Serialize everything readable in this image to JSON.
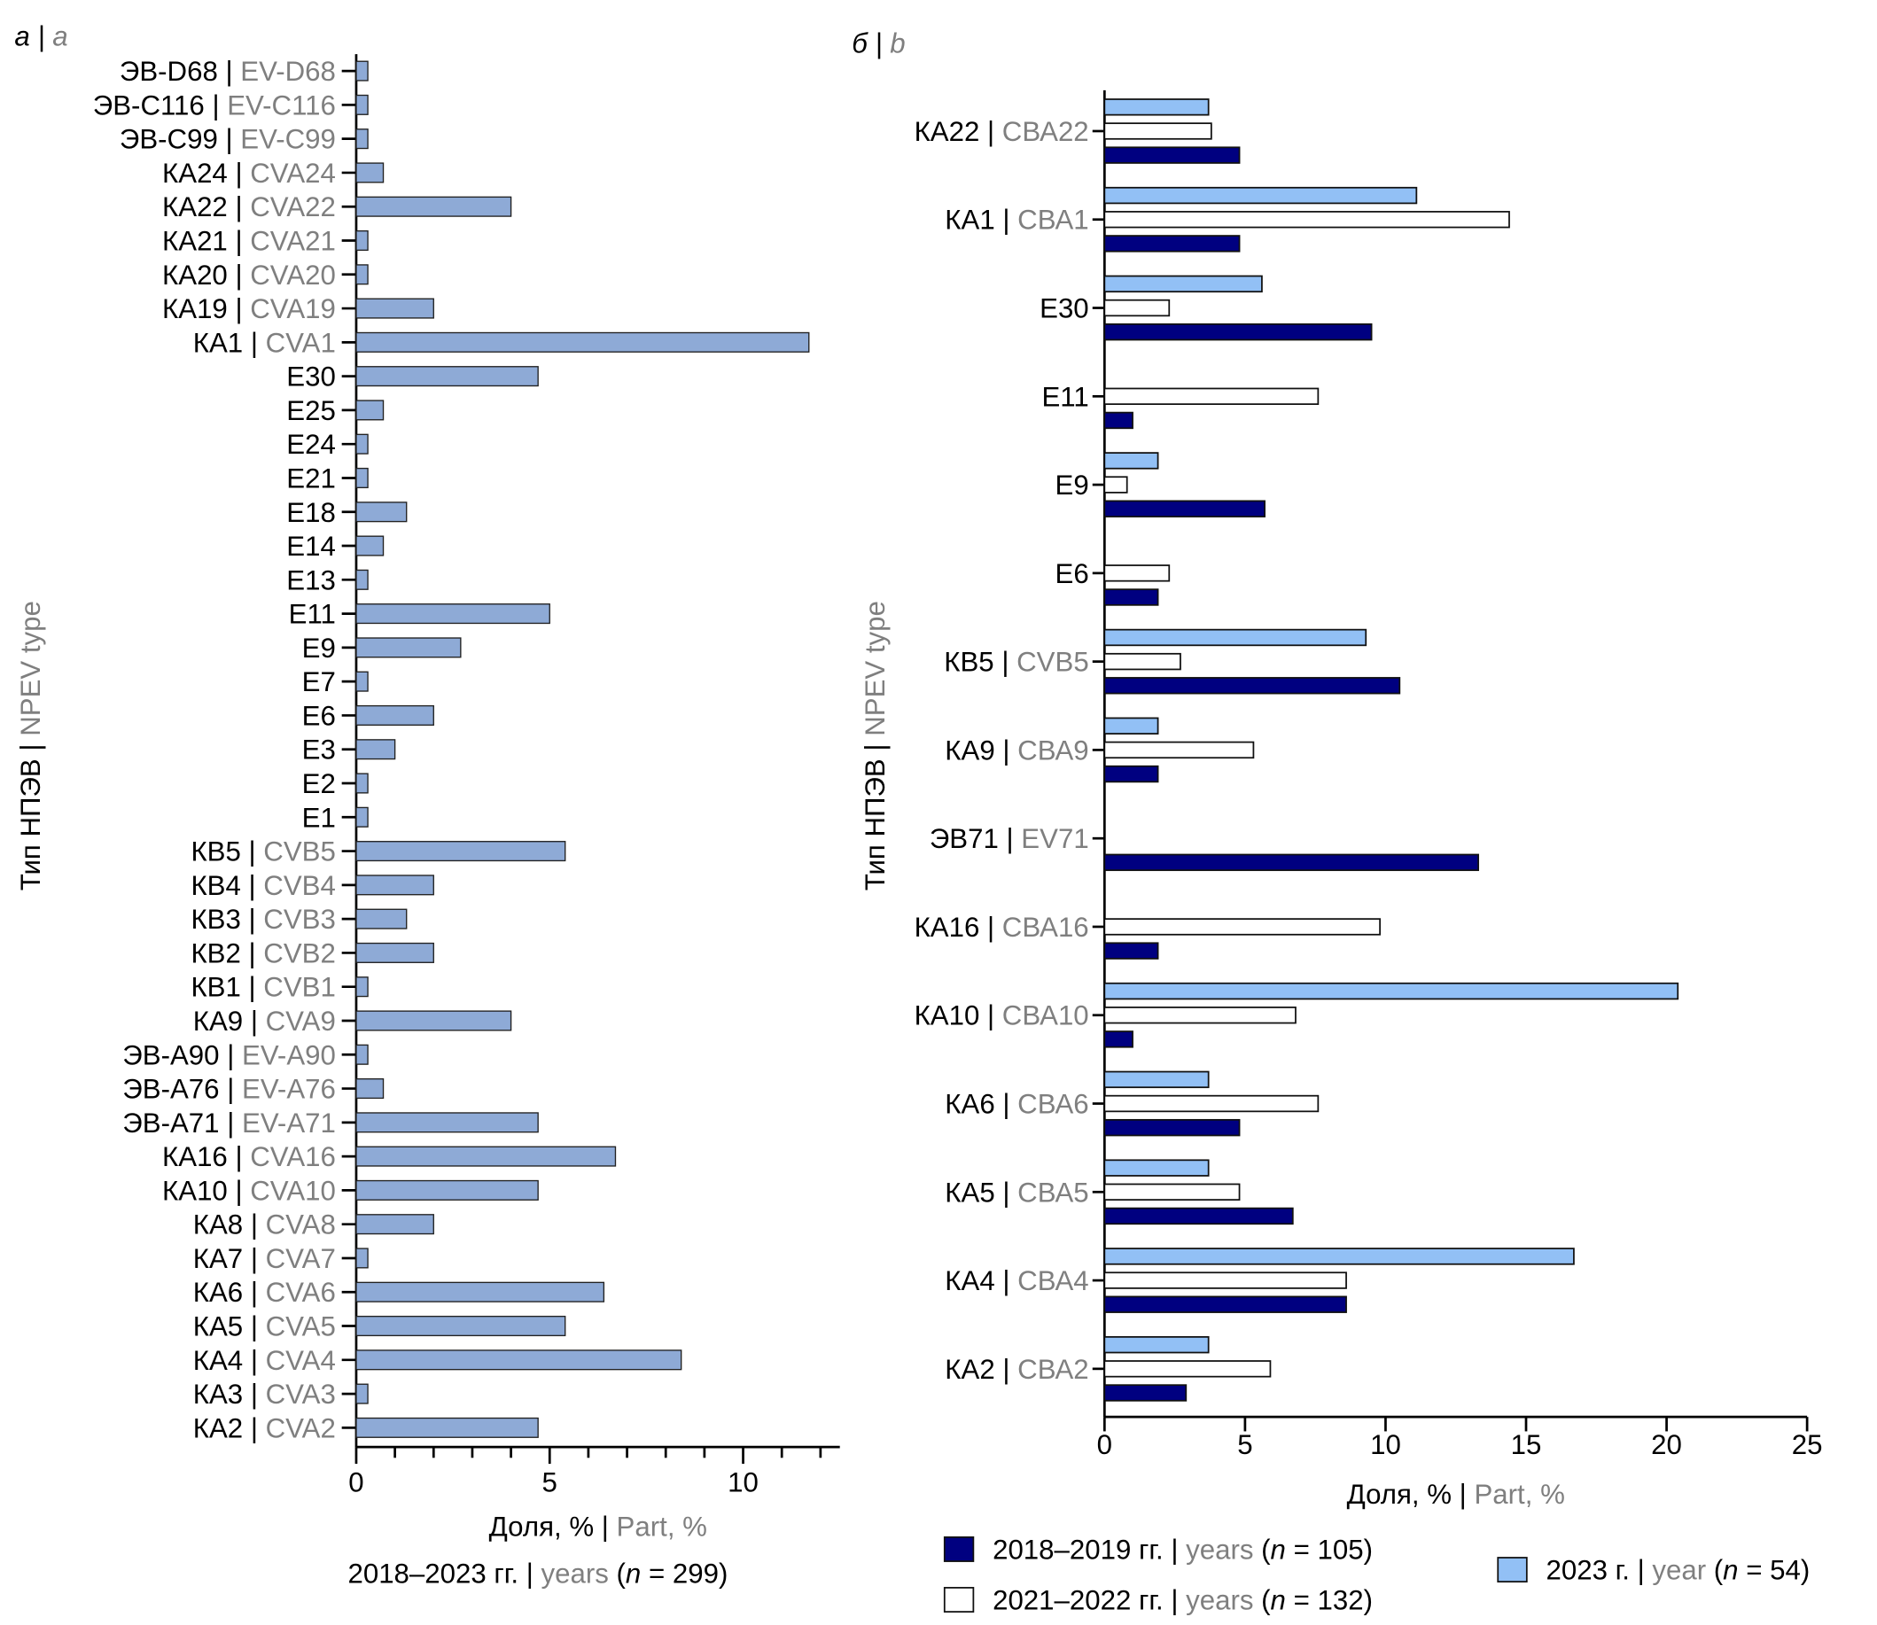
{
  "panels": {
    "a": {
      "ru": "а",
      "en": "a"
    },
    "b": {
      "ru": "б",
      "en": "b"
    }
  },
  "colors": {
    "panel_a_bar": "#8eaad6",
    "series_2018_2019": "#000080",
    "series_2021_2022": "#ffffff",
    "series_2023": "#92c0f5",
    "english_text": "#7f7f7f"
  },
  "chart_data": [
    {
      "type": "bar",
      "orientation": "horizontal",
      "panel": "a",
      "ylabel": {
        "ru": "Тип НПЭВ",
        "en": "NPEV type"
      },
      "xlabel": {
        "ru": "Доля, %",
        "en": "Part, %"
      },
      "subtitle": {
        "ru": "2018–2023 гг.",
        "en": "years",
        "n_symbol": "n",
        "n": "299"
      },
      "xlim": [
        0,
        12.5
      ],
      "xticks": [
        0,
        5,
        10
      ],
      "grid": false,
      "categories": [
        {
          "ru": "ЭВ-D68",
          "en": "EV-D68"
        },
        {
          "ru": "ЭВ-C116",
          "en": "EV-C116"
        },
        {
          "ru": "ЭВ-C99",
          "en": "EV-C99"
        },
        {
          "ru": "КА24",
          "en": "CVA24"
        },
        {
          "ru": "КА22",
          "en": "CVA22"
        },
        {
          "ru": "КА21",
          "en": "CVA21"
        },
        {
          "ru": "КА20",
          "en": "CVA20"
        },
        {
          "ru": "КА19",
          "en": "CVA19"
        },
        {
          "ru": "КА1",
          "en": "CVA1"
        },
        {
          "ru": "E30"
        },
        {
          "ru": "E25"
        },
        {
          "ru": "E24"
        },
        {
          "ru": "E21"
        },
        {
          "ru": "E18"
        },
        {
          "ru": "E14"
        },
        {
          "ru": "E13"
        },
        {
          "ru": "E11"
        },
        {
          "ru": "E9"
        },
        {
          "ru": "E7"
        },
        {
          "ru": "E6"
        },
        {
          "ru": "E3"
        },
        {
          "ru": "E2"
        },
        {
          "ru": "E1"
        },
        {
          "ru": "КВ5",
          "en": "CVB5"
        },
        {
          "ru": "КВ4",
          "en": "CVB4"
        },
        {
          "ru": "КВ3",
          "en": "CVB3"
        },
        {
          "ru": "КВ2",
          "en": "CVB2"
        },
        {
          "ru": "КВ1",
          "en": "CVB1"
        },
        {
          "ru": "КА9",
          "en": "CVA9"
        },
        {
          "ru": "ЭВ-А90",
          "en": "EV-A90"
        },
        {
          "ru": "ЭВ-А76",
          "en": "EV-A76"
        },
        {
          "ru": "ЭВ-А71",
          "en": "EV-A71"
        },
        {
          "ru": "КА16",
          "en": "CVA16"
        },
        {
          "ru": "КА10",
          "en": "CVA10"
        },
        {
          "ru": "КА8",
          "en": "CVA8"
        },
        {
          "ru": "КА7",
          "en": "CVA7"
        },
        {
          "ru": "КА6",
          "en": "CVA6"
        },
        {
          "ru": "КА5",
          "en": "CVA5"
        },
        {
          "ru": "КА4",
          "en": "CVA4"
        },
        {
          "ru": "КА3",
          "en": "CVA3"
        },
        {
          "ru": "КА2",
          "en": "CVA2"
        }
      ],
      "values": [
        0.3,
        0.3,
        0.3,
        0.7,
        4.0,
        0.3,
        0.3,
        2.0,
        11.7,
        4.7,
        0.7,
        0.3,
        0.3,
        1.3,
        0.7,
        0.3,
        5.0,
        2.7,
        0.3,
        2.0,
        1.0,
        0.3,
        0.3,
        5.4,
        2.0,
        1.3,
        2.0,
        0.3,
        4.0,
        0.3,
        0.7,
        4.7,
        6.7,
        4.7,
        2.0,
        0.3,
        6.4,
        5.4,
        8.4,
        0.3,
        4.7
      ]
    },
    {
      "type": "bar",
      "orientation": "horizontal",
      "panel": "b",
      "ylabel": {
        "ru": "Тип НПЭВ",
        "en": "NPEV type"
      },
      "xlabel": {
        "ru": "Доля, %",
        "en": "Part, %"
      },
      "xlim": [
        0,
        25
      ],
      "xticks": [
        0,
        5,
        10,
        15,
        20,
        25
      ],
      "grid": false,
      "legend_position": "bottom",
      "categories": [
        {
          "ru": "КА22",
          "en": "СВА22"
        },
        {
          "ru": "КА1",
          "en": "СВА1"
        },
        {
          "ru": "E30"
        },
        {
          "ru": "E11"
        },
        {
          "ru": "E9"
        },
        {
          "ru": "E6"
        },
        {
          "ru": "КВ5",
          "en": "CVB5"
        },
        {
          "ru": "КА9",
          "en": "СВА9"
        },
        {
          "ru": "ЭВ71",
          "en": "EV71"
        },
        {
          "ru": "КА16",
          "en": "СВА16"
        },
        {
          "ru": "КА10",
          "en": "СВА10"
        },
        {
          "ru": "КА6",
          "en": "СВА6"
        },
        {
          "ru": "КА5",
          "en": "СВА5"
        },
        {
          "ru": "КА4",
          "en": "СВА4"
        },
        {
          "ru": "КА2",
          "en": "СВА2"
        }
      ],
      "series": [
        {
          "name": {
            "ru": "2023 г.",
            "en": "year",
            "n_symbol": "n",
            "n": "54"
          },
          "color": "#92c0f5",
          "values": [
            3.7,
            11.1,
            5.6,
            null,
            1.9,
            null,
            9.3,
            1.9,
            null,
            null,
            20.4,
            3.7,
            3.7,
            16.7,
            3.7
          ]
        },
        {
          "name": {
            "ru": "2021–2022 гг.",
            "en": "years",
            "n_symbol": "n",
            "n": "132"
          },
          "color": "#ffffff",
          "values": [
            3.8,
            14.4,
            2.3,
            7.6,
            0.8,
            2.3,
            2.7,
            5.3,
            null,
            9.8,
            6.8,
            7.6,
            4.8,
            8.6,
            5.9
          ]
        },
        {
          "name": {
            "ru": "2018–2019 гг.",
            "en": "years",
            "n_symbol": "n",
            "n": "105"
          },
          "color": "#000080",
          "values": [
            4.8,
            4.8,
            9.5,
            1.0,
            5.7,
            1.9,
            10.5,
            1.9,
            13.3,
            1.9,
            1.0,
            4.8,
            6.7,
            8.6,
            2.9
          ]
        }
      ]
    }
  ]
}
